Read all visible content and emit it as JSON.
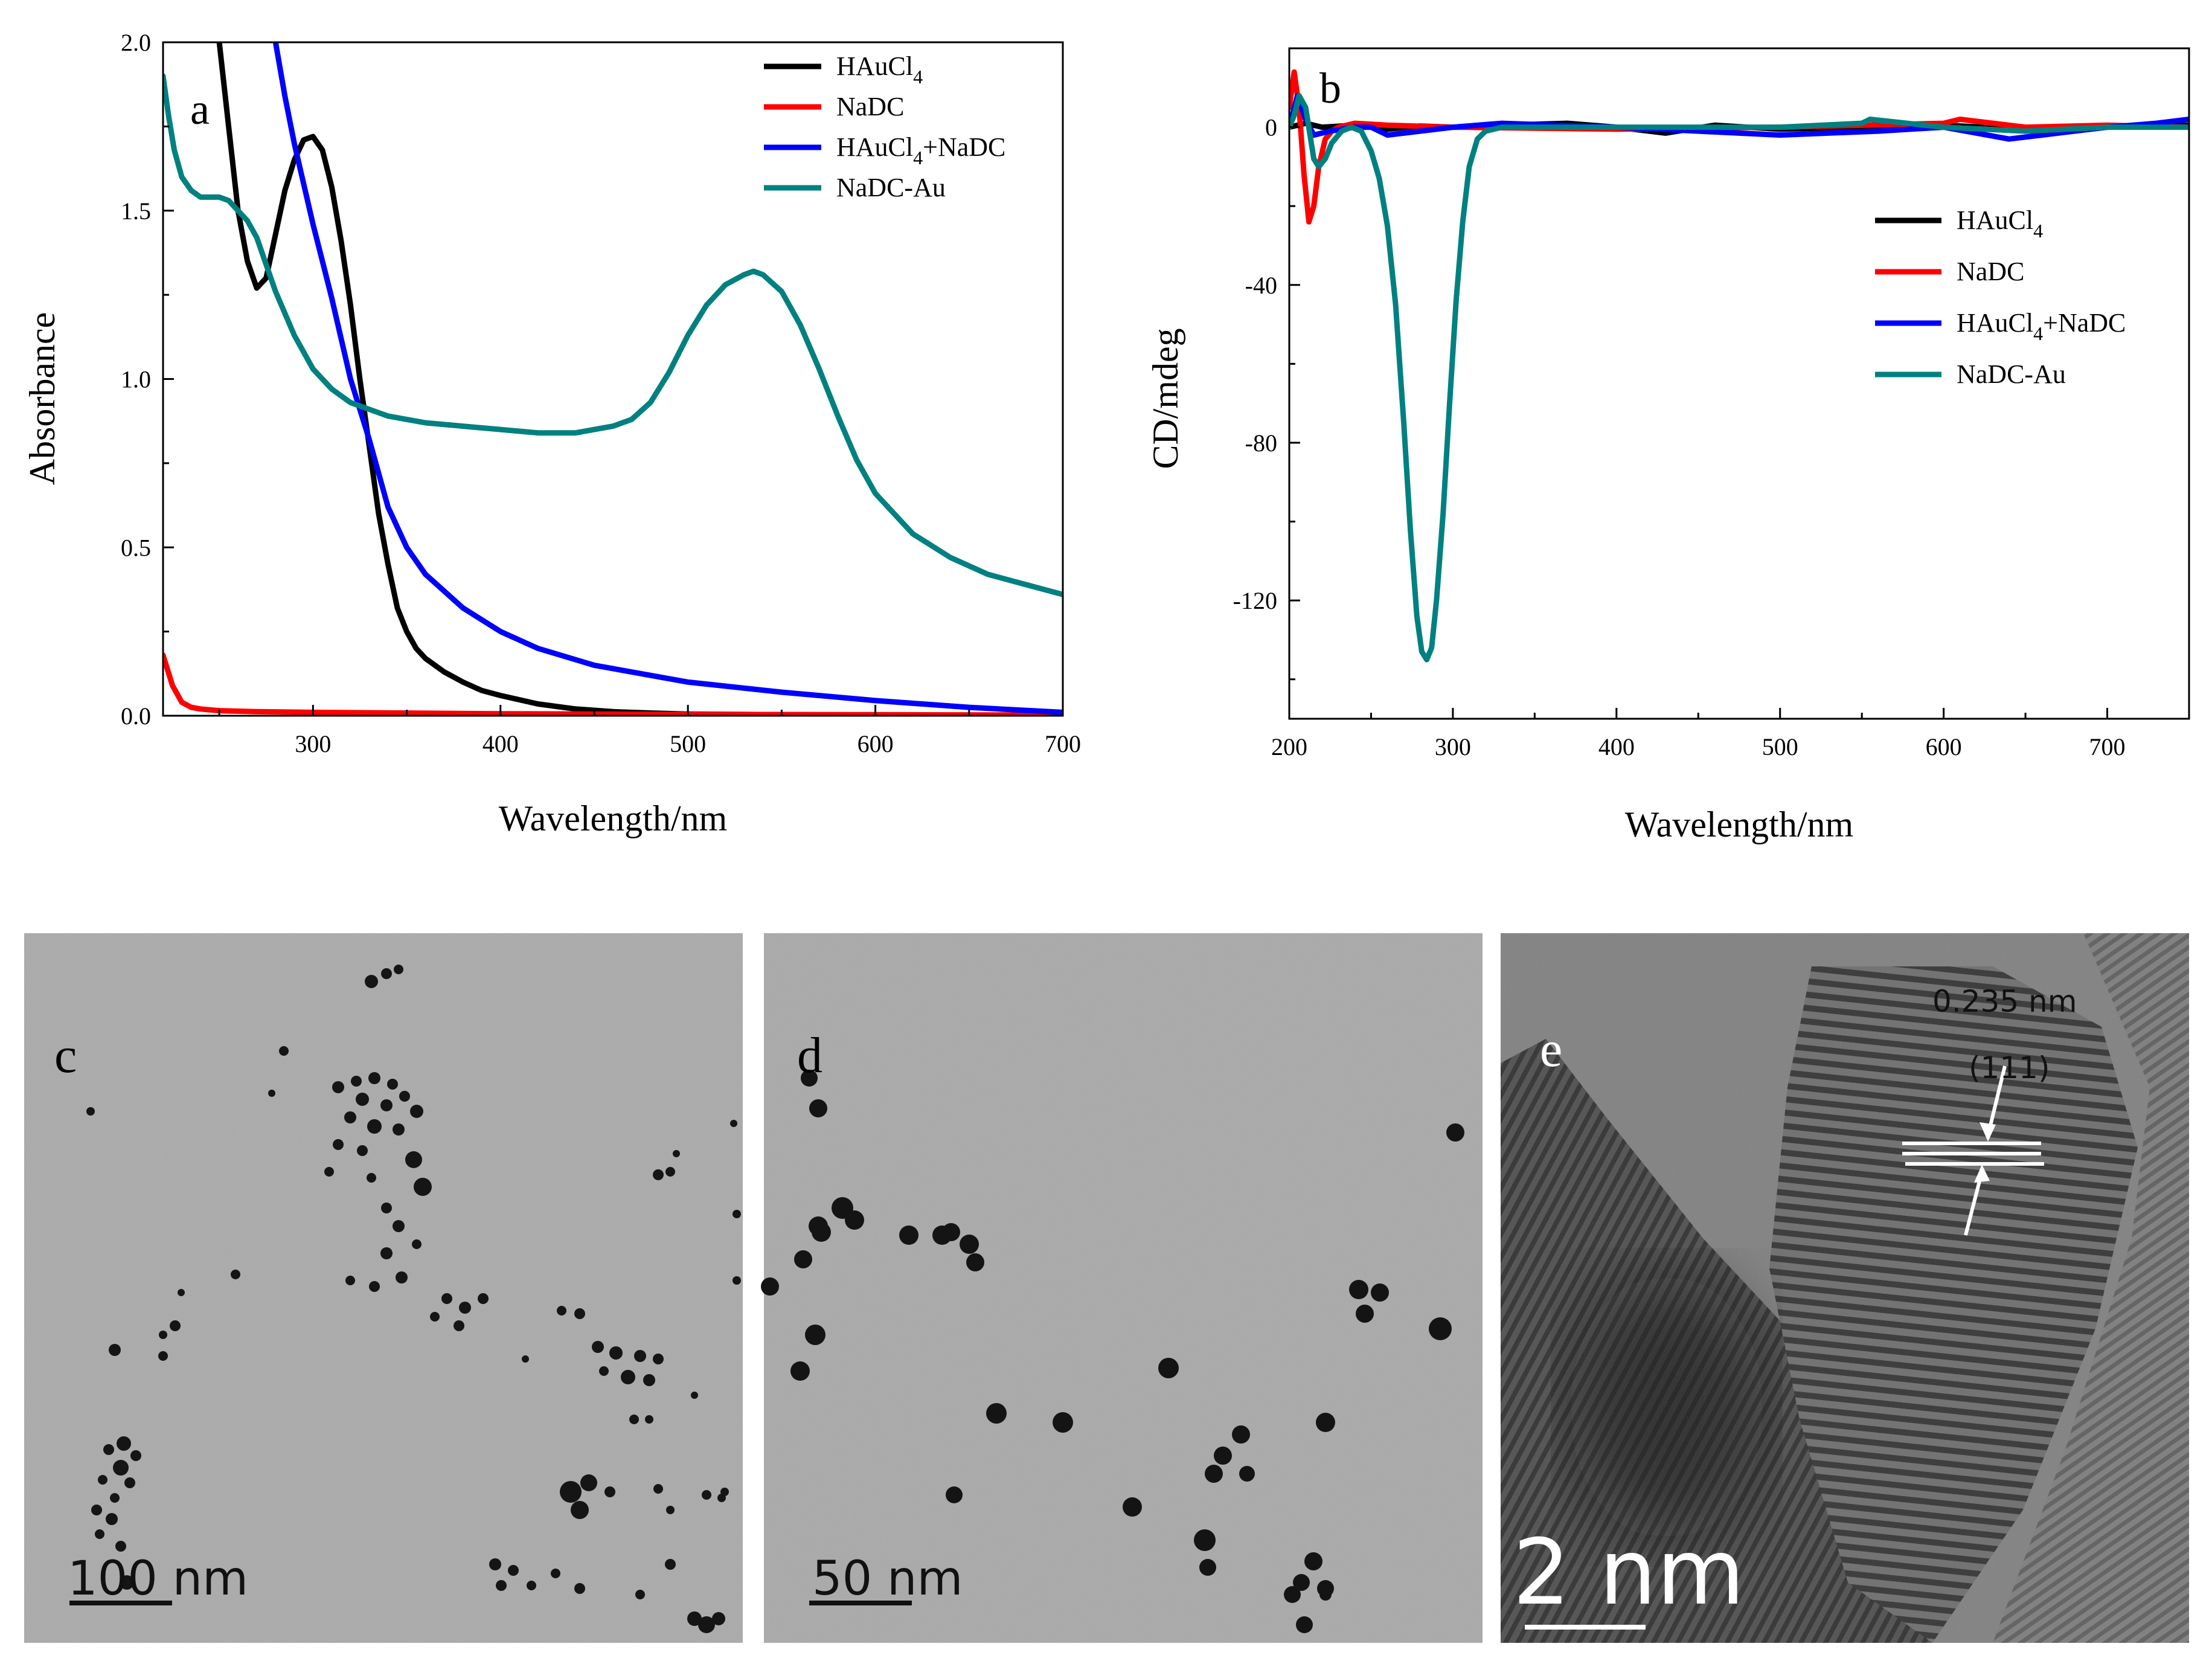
{
  "chart_data": [
    {
      "panel": "a",
      "type": "line",
      "xlabel": "Wavelength/nm",
      "ylabel": "Absorbance",
      "xlim": [
        220,
        700
      ],
      "ylim": [
        0.0,
        2.0
      ],
      "xticks": [
        300,
        400,
        500,
        600,
        700
      ],
      "yticks": [
        "0.0",
        "0.5",
        "1.0",
        "1.5",
        "2.0"
      ],
      "legend_position": "top-right",
      "series": [
        {
          "name": "HAuCl",
          "sub": "4",
          "suffix": "",
          "color": "#000000",
          "x": [
            250,
            255,
            260,
            265,
            270,
            275,
            280,
            285,
            290,
            295,
            300,
            305,
            310,
            315,
            320,
            325,
            330,
            335,
            340,
            345,
            350,
            355,
            360,
            370,
            380,
            390,
            400,
            420,
            440,
            460,
            480,
            500,
            550,
            600,
            700
          ],
          "y": [
            2.0,
            1.75,
            1.5,
            1.35,
            1.27,
            1.3,
            1.43,
            1.56,
            1.65,
            1.71,
            1.72,
            1.68,
            1.57,
            1.41,
            1.22,
            1.0,
            0.8,
            0.6,
            0.45,
            0.32,
            0.25,
            0.2,
            0.17,
            0.13,
            0.1,
            0.075,
            0.06,
            0.035,
            0.02,
            0.012,
            0.008,
            0.005,
            0.003,
            0.002,
            0.001
          ]
        },
        {
          "name": "NaDC",
          "sub": "",
          "suffix": "",
          "color": "#ff0000",
          "x": [
            220,
            225,
            230,
            235,
            240,
            250,
            270,
            300,
            400,
            500,
            600,
            700
          ],
          "y": [
            0.18,
            0.09,
            0.04,
            0.025,
            0.02,
            0.015,
            0.012,
            0.01,
            0.006,
            0.004,
            0.003,
            0.002
          ]
        },
        {
          "name": "HAuCl",
          "sub": "4",
          "suffix": "+NaDC",
          "color": "#0000ff",
          "x": [
            280,
            285,
            290,
            295,
            300,
            305,
            310,
            315,
            320,
            330,
            340,
            350,
            360,
            380,
            400,
            420,
            450,
            500,
            550,
            600,
            650,
            700
          ],
          "y": [
            2.0,
            1.84,
            1.7,
            1.58,
            1.46,
            1.35,
            1.24,
            1.12,
            1.0,
            0.82,
            0.62,
            0.5,
            0.42,
            0.32,
            0.25,
            0.2,
            0.15,
            0.1,
            0.07,
            0.045,
            0.025,
            0.01
          ]
        },
        {
          "name": "NaDC-Au",
          "sub": "",
          "suffix": "",
          "color": "#008080",
          "x": [
            220,
            223,
            226,
            230,
            235,
            240,
            245,
            250,
            255,
            260,
            265,
            270,
            275,
            280,
            290,
            300,
            310,
            320,
            330,
            340,
            350,
            360,
            380,
            400,
            420,
            440,
            460,
            470,
            480,
            490,
            500,
            510,
            520,
            530,
            535,
            540,
            550,
            560,
            570,
            580,
            590,
            600,
            620,
            640,
            660,
            680,
            700
          ],
          "y": [
            1.9,
            1.78,
            1.68,
            1.6,
            1.56,
            1.54,
            1.54,
            1.54,
            1.53,
            1.5,
            1.47,
            1.42,
            1.34,
            1.26,
            1.13,
            1.03,
            0.97,
            0.93,
            0.91,
            0.89,
            0.88,
            0.87,
            0.86,
            0.85,
            0.84,
            0.84,
            0.86,
            0.88,
            0.93,
            1.02,
            1.13,
            1.22,
            1.28,
            1.31,
            1.32,
            1.31,
            1.26,
            1.16,
            1.03,
            0.89,
            0.76,
            0.66,
            0.54,
            0.47,
            0.42,
            0.39,
            0.36
          ]
        }
      ]
    },
    {
      "panel": "b",
      "type": "line",
      "xlabel": "Wavelength/nm",
      "ylabel": "CD/mdeg",
      "xlim": [
        200,
        750
      ],
      "ylim": [
        -150,
        20
      ],
      "xticks": [
        200,
        300,
        400,
        500,
        600,
        700
      ],
      "yticks": [
        0,
        -40,
        -80,
        -120
      ],
      "legend_position": "right",
      "series": [
        {
          "name": "HAuCl",
          "sub": "4",
          "suffix": "",
          "color": "#000000",
          "x": [
            200,
            210,
            220,
            240,
            260,
            280,
            300,
            330,
            370,
            400,
            430,
            460,
            500,
            550,
            600,
            650,
            700,
            750
          ],
          "y": [
            0,
            1,
            0,
            0.5,
            -0.5,
            0.3,
            0,
            0.5,
            1,
            0,
            -1.5,
            0.5,
            -0.5,
            0,
            0.5,
            -0.5,
            0,
            0.5
          ]
        },
        {
          "name": "NaDC",
          "sub": "",
          "suffix": "",
          "color": "#ff0000",
          "x": [
            200,
            203,
            206,
            209,
            212,
            215,
            218,
            222,
            226,
            230,
            240,
            260,
            300,
            400,
            500,
            600,
            610,
            650,
            700,
            750
          ],
          "y": [
            5,
            14,
            5,
            -12,
            -24,
            -20,
            -10,
            -3,
            -1,
            0,
            1,
            0.5,
            0,
            -0.5,
            0,
            1,
            2,
            0,
            0.5,
            0
          ]
        },
        {
          "name": "HAuCl",
          "sub": "4",
          "suffix": "+NaDC",
          "color": "#0000ff",
          "x": [
            200,
            205,
            210,
            215,
            225,
            240,
            250,
            260,
            280,
            300,
            330,
            400,
            450,
            500,
            560,
            600,
            640,
            660,
            700,
            730,
            750
          ],
          "y": [
            0,
            8,
            2,
            -2,
            -1,
            0,
            0,
            -2,
            -1,
            0,
            1,
            0,
            -1,
            -2,
            -1,
            0,
            -3,
            -2,
            0,
            1,
            2
          ]
        },
        {
          "name": "NaDC-Au",
          "sub": "",
          "suffix": "",
          "color": "#008080",
          "x": [
            200,
            203,
            206,
            210,
            215,
            218,
            222,
            226,
            232,
            238,
            244,
            250,
            255,
            260,
            265,
            270,
            274,
            278,
            281,
            284,
            287,
            290,
            294,
            298,
            302,
            306,
            310,
            315,
            320,
            330,
            350,
            400,
            450,
            500,
            550,
            555,
            600,
            650,
            700,
            750
          ],
          "y": [
            0,
            3,
            8,
            5,
            -8,
            -10,
            -8,
            -4,
            -1,
            0,
            -1,
            -6,
            -13,
            -25,
            -45,
            -75,
            -102,
            -124,
            -133,
            -135,
            -132,
            -120,
            -98,
            -70,
            -44,
            -24,
            -10,
            -3,
            -1,
            0,
            0,
            0,
            0,
            0,
            1,
            2,
            0,
            -1,
            0,
            0
          ]
        }
      ]
    }
  ],
  "panels": {
    "a": "a",
    "b": "b",
    "c": {
      "label": "c",
      "scale": "100 nm"
    },
    "d": {
      "label": "d",
      "scale": "50 nm"
    },
    "e": {
      "label": "e",
      "scale": "2 nm",
      "spacing": "0.235 nm",
      "plane": "(111)"
    }
  }
}
